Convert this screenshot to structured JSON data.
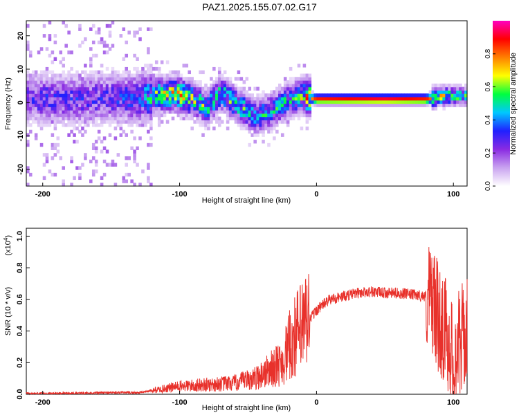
{
  "figure": {
    "title": "PAZ1.2025.155.07.02.G17"
  },
  "chart_data": [
    {
      "type": "heatmap",
      "xlabel": "Height of straight line (km)",
      "ylabel": "Frequency (Hz)",
      "xlim": [
        -212,
        110
      ],
      "ylim": [
        -25,
        24.5
      ],
      "xticks": [
        -200,
        -100,
        0,
        100
      ],
      "xtick_labels": [
        "-200",
        "-100",
        "0",
        "100"
      ],
      "yticks": [
        -20,
        -10,
        0,
        10,
        20
      ],
      "ytick_labels": [
        "-20",
        "-10",
        "0",
        "10",
        "20"
      ],
      "colorbar": {
        "label": "Normalized spectral amplitude",
        "range": [
          0,
          1
        ],
        "ticks": [
          0.0,
          0.2,
          0.4,
          0.6,
          0.8
        ],
        "tick_labels": [
          "0.0",
          "0.2",
          "0.4",
          "0.6",
          "0.8"
        ],
        "colors": [
          "#ffffff",
          "#c9a3f0",
          "#8a2be2",
          "#2020ff",
          "#00c8ff",
          "#00ff40",
          "#ffff00",
          "#ff8000",
          "#ff0000",
          "#ff00c0"
        ]
      },
      "ridge_points": [
        {
          "x": -212,
          "f": 1.5,
          "a": 0.25
        },
        {
          "x": -180,
          "f": 1.0,
          "a": 0.25
        },
        {
          "x": -150,
          "f": 1.5,
          "a": 0.25
        },
        {
          "x": -130,
          "f": 1.5,
          "a": 0.3
        },
        {
          "x": -115,
          "f": 2.5,
          "a": 0.5
        },
        {
          "x": -100,
          "f": 2.5,
          "a": 0.6
        },
        {
          "x": -90,
          "f": 1.0,
          "a": 0.5
        },
        {
          "x": -80,
          "f": -1.5,
          "a": 0.45
        },
        {
          "x": -70,
          "f": 3.0,
          "a": 0.45
        },
        {
          "x": -60,
          "f": 0.0,
          "a": 0.45
        },
        {
          "x": -45,
          "f": -4.0,
          "a": 0.4
        },
        {
          "x": -30,
          "f": -2.0,
          "a": 0.4
        },
        {
          "x": -20,
          "f": 1.0,
          "a": 0.4
        },
        {
          "x": -10,
          "f": 2.0,
          "a": 0.5
        },
        {
          "x": 0,
          "f": 1.0,
          "a": 0.9
        },
        {
          "x": 50,
          "f": 1.0,
          "a": 0.95
        },
        {
          "x": 80,
          "f": 1.0,
          "a": 0.9
        },
        {
          "x": 90,
          "f": 2.0,
          "a": 0.6
        },
        {
          "x": 110,
          "f": 2.0,
          "a": 0.4
        }
      ]
    },
    {
      "type": "line",
      "xlabel": "Height of straight line (km)",
      "ylabel": "SNR (10 * v/v)",
      "scale_label": "(x10",
      "scale_exponent": "4",
      "scale_close": ")",
      "xlim": [
        -212,
        110
      ],
      "ylim": [
        0,
        1.05
      ],
      "xticks": [
        -200,
        -100,
        0,
        100
      ],
      "xtick_labels": [
        "-200",
        "-100",
        "0",
        "100"
      ],
      "yticks": [
        0.0,
        0.2,
        0.4,
        0.6,
        0.8,
        1.0
      ],
      "ytick_labels": [
        "0.0",
        "0.2",
        "0.4",
        "0.6",
        "0.8",
        "1.0"
      ],
      "color": "#e8312b",
      "series": [
        {
          "x": [
            -212,
            -180,
            -150,
            -130,
            -115,
            -100,
            -80,
            -60,
            -45,
            -35,
            -25,
            -20,
            -15,
            -10,
            -5,
            0,
            5,
            10,
            20,
            30,
            40,
            50,
            60,
            70,
            80,
            85,
            90,
            95,
            100,
            105,
            110
          ],
          "y": [
            0.005,
            0.005,
            0.01,
            0.01,
            0.03,
            0.05,
            0.06,
            0.07,
            0.1,
            0.15,
            0.2,
            0.3,
            0.38,
            0.42,
            0.48,
            0.53,
            0.57,
            0.6,
            0.62,
            0.64,
            0.65,
            0.64,
            0.64,
            0.63,
            0.62,
            0.6,
            0.45,
            0.4,
            0.2,
            0.35,
            0.38
          ]
        }
      ]
    }
  ]
}
